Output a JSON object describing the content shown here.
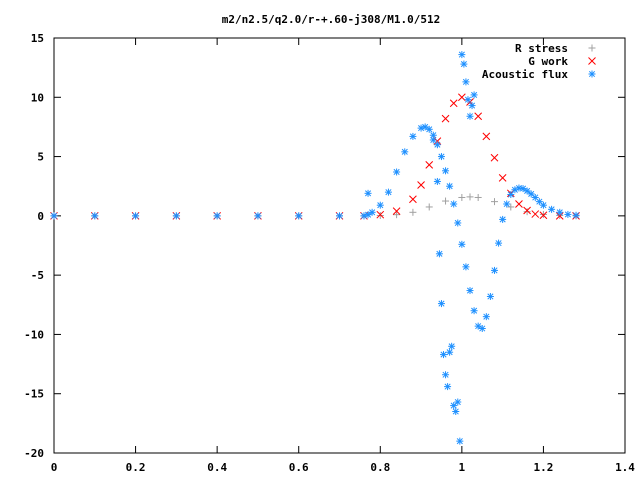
{
  "chart_data": {
    "type": "scatter",
    "title": "m2/n2.5/q2.0/r-+.60-j308/M1.0/512",
    "xlabel": "",
    "ylabel": "",
    "xlim": [
      0,
      1.4
    ],
    "ylim": [
      -20,
      15
    ],
    "x_ticks": [
      "0",
      "0.2",
      "0.4",
      "0.6",
      "0.8",
      "1",
      "1.2",
      "1.4"
    ],
    "y_ticks": [
      "-20",
      "-15",
      "-10",
      "-5",
      "0",
      "5",
      "10",
      "15"
    ],
    "grid": false,
    "legend_position": "top-right",
    "series": [
      {
        "name": "R stress",
        "marker": "+",
        "color": "#a0a0a0",
        "x": [
          0.0,
          0.1,
          0.2,
          0.3,
          0.4,
          0.5,
          0.6,
          0.7,
          0.76,
          0.8,
          0.84,
          0.88,
          0.92,
          0.96,
          1.0,
          1.02,
          1.04,
          1.08,
          1.12,
          1.16,
          1.2,
          1.24,
          1.28
        ],
        "y": [
          0.0,
          0.0,
          0.0,
          0.0,
          0.0,
          0.0,
          0.0,
          0.0,
          0.0,
          0.03,
          0.1,
          0.3,
          0.75,
          1.25,
          1.55,
          1.6,
          1.55,
          1.2,
          0.75,
          0.35,
          0.12,
          0.03,
          0.0
        ]
      },
      {
        "name": "G work",
        "marker": "x",
        "color": "#ff0000",
        "x": [
          0.0,
          0.1,
          0.2,
          0.3,
          0.4,
          0.5,
          0.6,
          0.7,
          0.76,
          0.8,
          0.84,
          0.88,
          0.9,
          0.92,
          0.94,
          0.96,
          0.98,
          1.0,
          1.02,
          1.04,
          1.06,
          1.08,
          1.1,
          1.12,
          1.14,
          1.16,
          1.18,
          1.2,
          1.24,
          1.28
        ],
        "y": [
          0.0,
          0.0,
          0.0,
          0.0,
          0.0,
          0.0,
          0.0,
          0.0,
          0.0,
          0.1,
          0.4,
          1.4,
          2.6,
          4.3,
          6.3,
          8.2,
          9.5,
          10.0,
          9.6,
          8.4,
          6.7,
          4.9,
          3.2,
          1.9,
          1.0,
          0.45,
          0.15,
          0.05,
          0.0,
          0.0
        ]
      },
      {
        "name": "Acoustic flux",
        "marker": "*",
        "color": "#1e90ff",
        "x": [
          0.0,
          0.1,
          0.2,
          0.3,
          0.4,
          0.5,
          0.6,
          0.7,
          0.76,
          0.77,
          0.78,
          0.8,
          0.82,
          0.84,
          0.86,
          0.88,
          0.9,
          0.91,
          0.92,
          0.93,
          0.94,
          0.95,
          0.96,
          0.97,
          0.98,
          0.99,
          1.0,
          1.01,
          1.02,
          1.03,
          1.04,
          1.05,
          1.06,
          1.07,
          1.08,
          1.09,
          1.1,
          1.11,
          1.12,
          1.13,
          1.14,
          1.15,
          1.16,
          1.17,
          1.18,
          1.19,
          1.2,
          1.22,
          1.24,
          1.26,
          1.28,
          0.77,
          0.93,
          0.94,
          0.945,
          0.95,
          0.955,
          0.96,
          0.965,
          0.97,
          0.975,
          0.98,
          0.985,
          0.99,
          0.995,
          1.0,
          1.005,
          1.01,
          1.015,
          1.02,
          1.025,
          1.03
        ],
        "y": [
          0.0,
          0.0,
          0.0,
          0.0,
          0.0,
          0.0,
          0.0,
          0.0,
          0.0,
          0.1,
          0.3,
          0.9,
          2.0,
          3.7,
          5.4,
          6.7,
          7.4,
          7.5,
          7.3,
          6.8,
          6.0,
          5.0,
          3.8,
          2.5,
          1.0,
          -0.6,
          -2.4,
          -4.3,
          -6.3,
          -8.0,
          -9.3,
          -9.5,
          -8.5,
          -6.8,
          -4.6,
          -2.3,
          -0.3,
          1.0,
          1.8,
          2.2,
          2.35,
          2.3,
          2.1,
          1.85,
          1.55,
          1.2,
          0.9,
          0.55,
          0.3,
          0.12,
          0.05,
          1.9,
          6.4,
          2.9,
          -3.2,
          -7.4,
          -11.7,
          -13.4,
          -14.4,
          -11.5,
          -11.0,
          -16.0,
          -16.5,
          -15.7,
          -19.0,
          13.6,
          12.8,
          11.3,
          9.8,
          8.4,
          9.3,
          10.2
        ]
      }
    ]
  }
}
